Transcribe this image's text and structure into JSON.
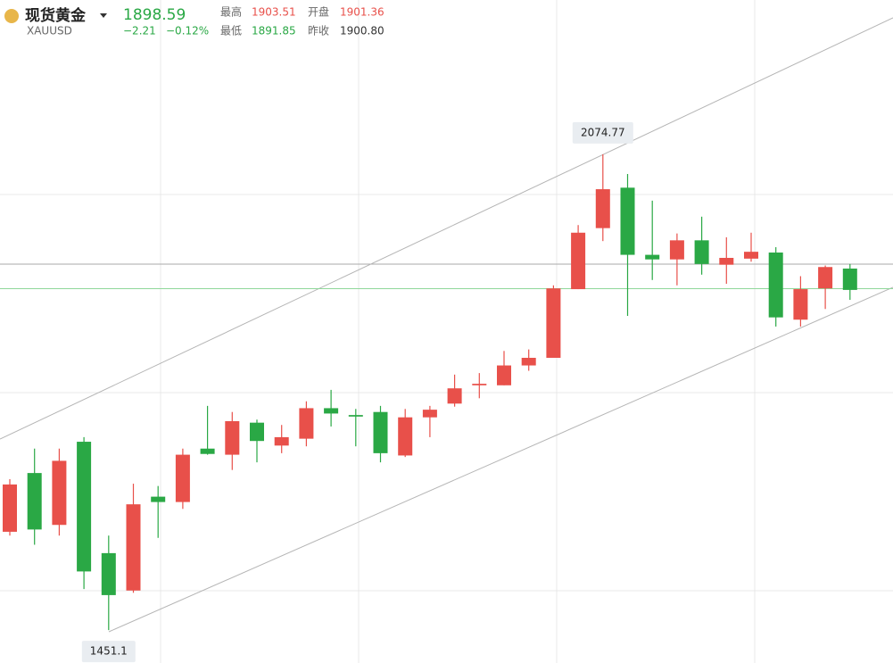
{
  "header": {
    "name": "现货黄金",
    "symbol": "XAUUSD",
    "price": "1898.59",
    "change": "−2.21",
    "change_pct": "−0.12%",
    "high_label": "最高",
    "high": "1903.51",
    "open_label": "开盘",
    "open": "1901.36",
    "low_label": "最低",
    "low": "1891.85",
    "prev_label": "昨收",
    "prev": "1900.80"
  },
  "chart_data": {
    "type": "candlestick",
    "up_color": "#e8504a",
    "down_color": "#2aa845",
    "last_price": 1898.59,
    "last_color": "#8fd89a",
    "ylim": [
      1408,
      2277
    ],
    "open": [
      1580,
      1657,
      1589,
      1698,
      1552,
      1503,
      1626,
      1619,
      1689,
      1681,
      1723,
      1693,
      1702,
      1742,
      1733,
      1737,
      1680,
      1730,
      1748,
      1772,
      1772,
      1798,
      1808,
      1898,
      1978,
      2031,
      1943,
      1937,
      1962,
      1930,
      1938,
      1946,
      1858,
      1899,
      1925
    ],
    "high": [
      1649,
      1689,
      1689,
      1704,
      1575,
      1643,
      1640,
      1689,
      1745,
      1737,
      1727,
      1720,
      1751,
      1766,
      1741,
      1745,
      1741,
      1745,
      1786,
      1788,
      1817,
      1819,
      1903,
      1982,
      2074.77,
      2049,
      2014,
      1971,
      1993,
      1966,
      1972,
      1953,
      1915,
      1929,
      1931
    ],
    "low": [
      1575,
      1563,
      1575,
      1505,
      1451.1,
      1500,
      1572,
      1610,
      1681,
      1661,
      1671,
      1683,
      1692,
      1718,
      1692,
      1671,
      1678,
      1704,
      1744,
      1755,
      1772,
      1791,
      1808,
      1898,
      1961,
      1863,
      1910,
      1903,
      1917,
      1905,
      1934,
      1849,
      1849,
      1872,
      1884
    ],
    "close": [
      1642,
      1583,
      1673,
      1528,
      1497,
      1616,
      1619,
      1681,
      1682,
      1725,
      1699,
      1704,
      1742,
      1735,
      1731,
      1683,
      1730,
      1740,
      1768,
      1774,
      1798,
      1808,
      1899,
      1972,
      2029,
      1943,
      1937,
      1962,
      1931,
      1939,
      1947,
      1861,
      1898,
      1927,
      1897
    ],
    "annotations": [
      {
        "value": 2074.77,
        "position": "above"
      },
      {
        "value": 1451.1,
        "position": "below"
      }
    ]
  }
}
